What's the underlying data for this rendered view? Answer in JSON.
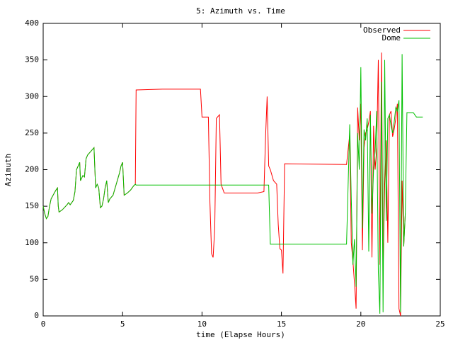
{
  "chart_data": {
    "type": "line",
    "title": "5: Azimuth vs. Time",
    "x_label": "time (Elapse Hours)",
    "y_label": "Azimuth",
    "x": [
      0,
      0.1,
      0.2,
      0.3,
      0.4,
      0.5,
      0.7,
      0.8,
      0.9,
      0.95,
      1.0,
      1.2,
      1.5,
      1.6,
      1.7,
      1.9,
      2.0,
      2.1,
      2.2,
      2.3,
      2.35,
      2.5,
      2.6,
      2.7,
      2.8,
      3.0,
      3.2,
      3.3,
      3.4,
      3.5,
      3.6,
      3.7,
      3.8,
      3.9,
      4.0,
      4.1,
      4.2,
      4.4,
      4.6,
      4.8,
      4.9,
      5.0,
      5.1,
      5.3,
      5.5,
      5.7,
      5.8,
      5.85,
      7.5,
      9.9,
      10.0,
      10.4,
      10.5,
      10.6,
      10.7,
      10.8,
      10.9,
      11.1,
      11.2,
      11.4,
      13.5,
      13.9,
      14.0,
      14.1,
      14.2,
      14.3,
      14.5,
      14.7,
      14.8,
      14.9,
      15.0,
      15.1,
      15.2,
      19.1,
      19.3,
      19.4,
      19.5,
      19.6,
      19.7,
      19.8,
      19.9,
      20.0,
      20.1,
      20.2,
      20.3,
      20.4,
      20.5,
      20.6,
      20.7,
      20.8,
      20.9,
      21.0,
      21.1,
      21.2,
      21.3,
      21.4,
      21.5,
      21.6,
      21.7,
      21.8,
      21.9,
      22.0,
      22.1,
      22.2,
      22.3,
      22.4,
      22.5,
      22.6,
      22.7,
      22.8,
      22.9,
      23.3,
      23.5,
      23.9
    ],
    "series": [
      {
        "name": "Observed",
        "color": "#ff0000",
        "values": [
          150,
          140,
          133,
          136,
          150,
          160,
          168,
          172,
          175,
          150,
          142,
          145,
          152,
          155,
          152,
          158,
          170,
          200,
          205,
          210,
          185,
          192,
          190,
          215,
          220,
          225,
          230,
          175,
          180,
          175,
          148,
          150,
          160,
          175,
          185,
          155,
          160,
          165,
          180,
          195,
          205,
          210,
          165,
          168,
          172,
          178,
          180,
          309,
          310,
          310,
          272,
          272,
          155,
          85,
          80,
          120,
          270,
          275,
          180,
          168,
          168,
          170,
          245,
          300,
          205,
          200,
          185,
          180,
          125,
          92,
          90,
          58,
          208,
          207,
          248,
          100,
          75,
          45,
          10,
          285,
          240,
          290,
          90,
          230,
          250,
          255,
          265,
          280,
          80,
          260,
          200,
          230,
          350,
          70,
          360,
          60,
          180,
          240,
          100,
          275,
          280,
          245,
          255,
          270,
          290,
          10,
          0,
          185,
          95,
          140,
          null,
          null,
          null,
          null
        ]
      },
      {
        "name": "Dome",
        "color": "#00c000",
        "values": [
          150,
          140,
          133,
          136,
          150,
          160,
          168,
          172,
          175,
          150,
          142,
          145,
          152,
          155,
          152,
          158,
          170,
          200,
          205,
          210,
          185,
          192,
          190,
          215,
          220,
          225,
          230,
          175,
          180,
          175,
          148,
          150,
          160,
          175,
          185,
          155,
          160,
          165,
          180,
          195,
          205,
          210,
          165,
          168,
          172,
          178,
          180,
          179,
          179,
          179,
          179,
          179,
          179,
          179,
          179,
          179,
          179,
          179,
          179,
          179,
          179,
          179,
          179,
          179,
          179,
          98,
          98,
          98,
          98,
          98,
          98,
          98,
          98,
          98,
          262,
          160,
          70,
          105,
          40,
          250,
          200,
          340,
          120,
          255,
          240,
          270,
          88,
          275,
          140,
          200,
          225,
          280,
          60,
          3,
          320,
          5,
          350,
          130,
          270,
          275,
          260,
          250,
          265,
          285,
          280,
          295,
          5,
          358,
          95,
          140,
          278,
          278,
          272,
          272
        ]
      }
    ],
    "xlim": [
      0,
      25
    ],
    "xticks": [
      0,
      5,
      10,
      15,
      20,
      25
    ],
    "ylim": [
      0,
      400
    ],
    "yticks": [
      0,
      50,
      100,
      150,
      200,
      250,
      300,
      350,
      400
    ],
    "legend": "top right",
    "grid": false
  }
}
